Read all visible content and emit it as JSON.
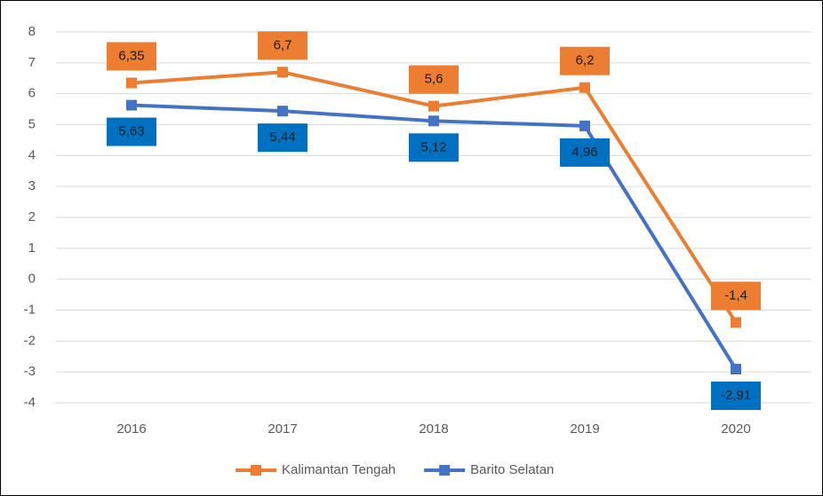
{
  "chart_data": {
    "type": "line",
    "categories": [
      "2016",
      "2017",
      "2018",
      "2019",
      "2020"
    ],
    "series": [
      {
        "name": "Kalimantan Tengah",
        "color": "#ed7d31",
        "label_color": "#ed7d31",
        "values": [
          6.35,
          6.7,
          5.6,
          6.2,
          -1.4
        ],
        "value_labels": [
          "6,35",
          "6,7",
          "5,6",
          "6,2",
          "-1,4"
        ]
      },
      {
        "name": "Barito Selatan",
        "color": "#4472c4",
        "label_color": "#0070c0",
        "values": [
          5.63,
          5.44,
          5.12,
          4.96,
          -2.91
        ],
        "value_labels": [
          "5,63",
          "5,44",
          "5,12",
          "4,96",
          "-2,91"
        ]
      }
    ],
    "ylim": [
      -4,
      8
    ],
    "yticks": [
      -4,
      -3,
      -2,
      -1,
      0,
      1,
      2,
      3,
      4,
      5,
      6,
      7,
      8
    ],
    "grid": true,
    "legend": "bottom"
  }
}
